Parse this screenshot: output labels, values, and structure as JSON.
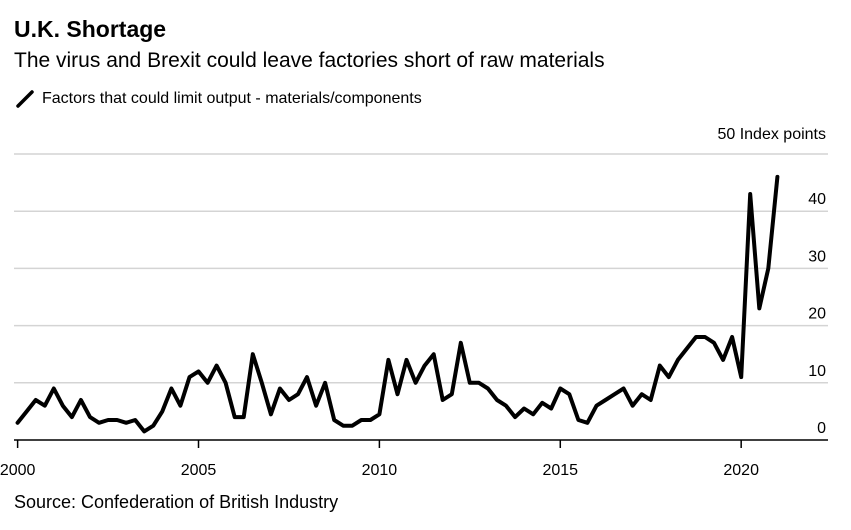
{
  "title": "U.K. Shortage",
  "subtitle": "The virus and Brexit could leave factories short of raw materials",
  "legend_label": "Factors that could limit output - materials/components",
  "source": "Source: Confederation of British Industry",
  "chart_data": {
    "type": "line",
    "unit_label": "50 Index points",
    "x_ticks": [
      2000,
      2005,
      2010,
      2015,
      2020
    ],
    "y_ticks": [
      0,
      10,
      20,
      30,
      40
    ],
    "xlim": [
      1999.9,
      2022.4
    ],
    "ylim": [
      0,
      50
    ],
    "grid": true,
    "series": [
      {
        "color": "#000000",
        "x": [
          2000.0,
          2000.25,
          2000.5,
          2000.75,
          2001.0,
          2001.25,
          2001.5,
          2001.75,
          2002.0,
          2002.25,
          2002.5,
          2002.75,
          2003.0,
          2003.25,
          2003.5,
          2003.75,
          2004.0,
          2004.25,
          2004.5,
          2004.75,
          2005.0,
          2005.25,
          2005.5,
          2005.75,
          2006.0,
          2006.25,
          2006.5,
          2006.75,
          2007.0,
          2007.25,
          2007.5,
          2007.75,
          2008.0,
          2008.25,
          2008.5,
          2008.75,
          2009.0,
          2009.25,
          2009.5,
          2009.75,
          2010.0,
          2010.25,
          2010.5,
          2010.75,
          2011.0,
          2011.25,
          2011.5,
          2011.75,
          2012.0,
          2012.25,
          2012.5,
          2012.75,
          2013.0,
          2013.25,
          2013.5,
          2013.75,
          2014.0,
          2014.25,
          2014.5,
          2014.75,
          2015.0,
          2015.25,
          2015.5,
          2015.75,
          2016.0,
          2016.25,
          2016.5,
          2016.75,
          2017.0,
          2017.25,
          2017.5,
          2017.75,
          2018.0,
          2018.25,
          2018.5,
          2018.75,
          2019.0,
          2019.25,
          2019.5,
          2019.75,
          2020.0,
          2020.25,
          2020.5,
          2020.75,
          2021.0
        ],
        "values": [
          3,
          5,
          7,
          6,
          9,
          6,
          4,
          7,
          4,
          3,
          3.5,
          3.5,
          3,
          3.5,
          1.5,
          2.5,
          5,
          9,
          6,
          11,
          12,
          10,
          13,
          10,
          4,
          4,
          15,
          10,
          4.5,
          9,
          7,
          8,
          11,
          6,
          10,
          3.5,
          2.5,
          2.5,
          3.5,
          3.5,
          4.5,
          14,
          8,
          14,
          10,
          13,
          15,
          7,
          8,
          17,
          10,
          10,
          9,
          7,
          6,
          4,
          5.5,
          4.5,
          6.5,
          5.5,
          9,
          8,
          3.5,
          3,
          6,
          7,
          8,
          9,
          6,
          8,
          7,
          13,
          11,
          14,
          16,
          18,
          18,
          17,
          14,
          18,
          11,
          43,
          23,
          30,
          46
        ]
      }
    ]
  }
}
